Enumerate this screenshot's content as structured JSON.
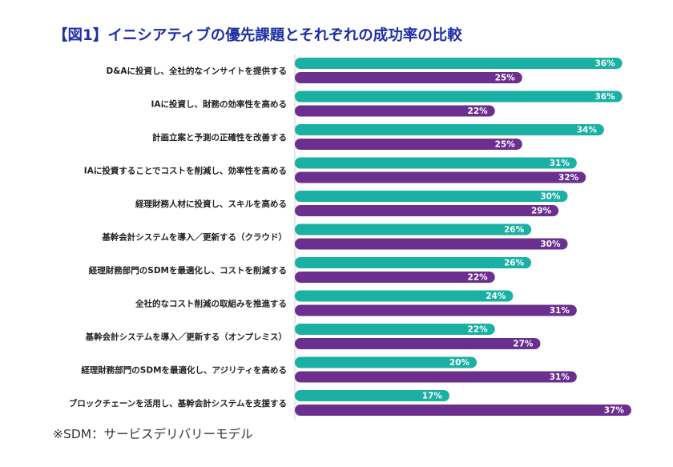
{
  "title": "【図1】イニシアティブの優先課題とそれぞれの成功率の比較",
  "footnote": "※SDM：サービスデリバリーモデル",
  "colors": {
    "series_a": "#1ab0a4",
    "series_b": "#6b2f8f",
    "title": "#1f2fa6"
  },
  "chart_data": {
    "type": "bar",
    "orientation": "horizontal",
    "title": "【図1】イニシアティブの優先課題とそれぞれの成功率の比較",
    "xlabel": "",
    "ylabel": "",
    "xlim": [
      0,
      40
    ],
    "grid": false,
    "legend": "none",
    "value_suffix": "%",
    "categories": [
      "D&Aに投資し、全社的なインサイトを提供する",
      "IAに投資し、財務の効率性を高める",
      "計画立案と予測の正確性を改善する",
      "IAに投資することでコストを削減し、効率性を高める",
      "経理財務人材に投資し、スキルを高める",
      "基幹会計システムを導入／更新する（クラウド）",
      "経理財務部門のSDMを最適化し、コストを削減する",
      "全社的なコスト削減の取組みを推進する",
      "基幹会計システムを導入／更新する（オンプレミス）",
      "経理財務部門のSDMを最適化し、アジリティを高める",
      "ブロックチェーンを活用し、基幹会計システムを支援する"
    ],
    "series": [
      {
        "color": "#1ab0a4",
        "values": [
          36,
          36,
          34,
          31,
          30,
          26,
          26,
          24,
          22,
          20,
          17
        ]
      },
      {
        "color": "#6b2f8f",
        "values": [
          25,
          22,
          25,
          32,
          29,
          30,
          22,
          31,
          27,
          31,
          37
        ]
      }
    ]
  }
}
